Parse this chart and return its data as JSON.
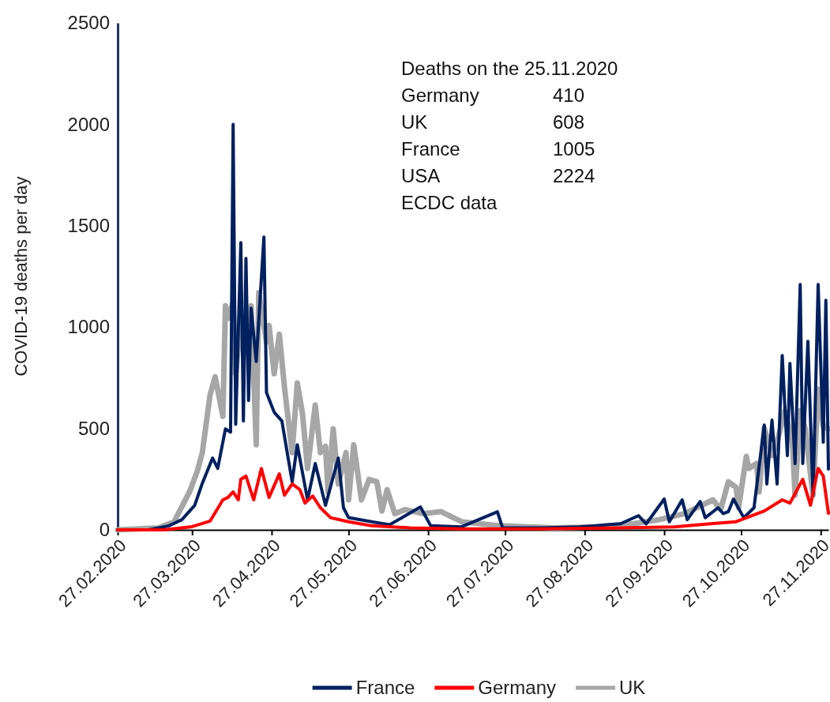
{
  "chart_data": {
    "type": "line",
    "ylabel": "COVID-19 deaths per day",
    "annotations": [
      "Deaths on the 25.11.2020",
      "Germany 410",
      "UK 608",
      "France 1005",
      "USA 2224",
      "ECDC data"
    ],
    "xlim": [
      "2020-02-27",
      "2020-11-30"
    ],
    "xticks": [
      {
        "value": "2020-02-27",
        "label": "27.02.2020"
      },
      {
        "value": "2020-03-27",
        "label": "27.03.2020"
      },
      {
        "value": "2020-04-27",
        "label": "27.04.2020"
      },
      {
        "value": "2020-05-27",
        "label": "27.05.2020"
      },
      {
        "value": "2020-06-27",
        "label": "27.06.2020"
      },
      {
        "value": "2020-07-27",
        "label": "27.07.2020"
      },
      {
        "value": "2020-08-27",
        "label": "27.08.2020"
      },
      {
        "value": "2020-09-27",
        "label": "27.09.2020"
      },
      {
        "value": "2020-10-27",
        "label": "27.10.2020"
      },
      {
        "value": "2020-11-27",
        "label": "27.11.2020"
      }
    ],
    "ylim": [
      0,
      2500
    ],
    "yticks": [
      0,
      500,
      1000,
      1500,
      2000,
      2500
    ],
    "grid": false,
    "legend": "bottom",
    "marker": "none",
    "line_style": "solid",
    "series": [
      {
        "name": "France",
        "color": "#002060",
        "x": [
          "2020-02-27",
          "2020-03-10",
          "2020-03-18",
          "2020-03-23",
          "2020-03-28",
          "2020-03-31",
          "2020-04-04",
          "2020-04-06",
          "2020-04-09",
          "2020-04-11",
          "2020-04-12",
          "2020-04-13",
          "2020-04-15",
          "2020-04-16",
          "2020-04-17",
          "2020-04-18",
          "2020-04-19",
          "2020-04-21",
          "2020-04-24",
          "2020-04-25",
          "2020-04-28",
          "2020-05-01",
          "2020-05-05",
          "2020-05-07",
          "2020-05-11",
          "2020-05-14",
          "2020-05-18",
          "2020-05-23",
          "2020-05-25",
          "2020-05-27",
          "2020-06-05",
          "2020-06-12",
          "2020-06-24",
          "2020-06-28",
          "2020-07-10",
          "2020-07-24",
          "2020-07-26",
          "2020-08-10",
          "2020-08-25",
          "2020-09-10",
          "2020-09-17",
          "2020-09-20",
          "2020-09-27",
          "2020-09-29",
          "2020-10-04",
          "2020-10-06",
          "2020-10-11",
          "2020-10-13",
          "2020-10-18",
          "2020-10-20",
          "2020-10-22",
          "2020-10-24",
          "2020-10-28",
          "2020-11-01",
          "2020-11-05",
          "2020-11-06",
          "2020-11-08",
          "2020-11-10",
          "2020-11-12",
          "2020-11-14",
          "2020-11-15",
          "2020-11-17",
          "2020-11-19",
          "2020-11-20",
          "2020-11-22",
          "2020-11-24",
          "2020-11-26",
          "2020-11-28",
          "2020-11-29",
          "2020-11-30"
        ],
        "values": [
          0,
          0,
          20,
          50,
          120,
          230,
          354,
          303,
          498,
          482,
          2000,
          521,
          1416,
          537,
          1339,
          638,
          1093,
          830,
          1444,
          677,
          580,
          537,
          237,
          420,
          148,
          327,
          121,
          354,
          109,
          60,
          40,
          25,
          113,
          20,
          15,
          89,
          10,
          10,
          15,
          30,
          70,
          30,
          152,
          40,
          148,
          50,
          140,
          60,
          109,
          80,
          90,
          152,
          60,
          109,
          517,
          226,
          541,
          226,
          860,
          366,
          821,
          327,
          1210,
          327,
          930,
          171,
          1210,
          432,
          1132,
          300
        ]
      },
      {
        "name": "Germany",
        "color": "#ff0000",
        "x": [
          "2020-02-27",
          "2020-03-16",
          "2020-03-27",
          "2020-04-03",
          "2020-04-08",
          "2020-04-10",
          "2020-04-12",
          "2020-04-14",
          "2020-04-15",
          "2020-04-17",
          "2020-04-20",
          "2020-04-23",
          "2020-04-26",
          "2020-04-30",
          "2020-05-02",
          "2020-05-05",
          "2020-05-08",
          "2020-05-10",
          "2020-05-13",
          "2020-05-16",
          "2020-05-20",
          "2020-05-27",
          "2020-06-05",
          "2020-06-20",
          "2020-07-10",
          "2020-08-10",
          "2020-09-10",
          "2020-10-01",
          "2020-10-15",
          "2020-10-25",
          "2020-11-05",
          "2020-11-12",
          "2020-11-15",
          "2020-11-20",
          "2020-11-23",
          "2020-11-26",
          "2020-11-28",
          "2020-11-30"
        ],
        "values": [
          0,
          0,
          16,
          43,
          148,
          160,
          187,
          148,
          249,
          265,
          148,
          303,
          160,
          276,
          171,
          226,
          198,
          132,
          167,
          109,
          60,
          40,
          20,
          10,
          5,
          5,
          10,
          15,
          30,
          40,
          93,
          148,
          132,
          249,
          121,
          303,
          265,
          82
        ]
      },
      {
        "name": "UK",
        "color": "#a6a6a6",
        "x": [
          "2020-02-27",
          "2020-03-14",
          "2020-03-20",
          "2020-03-26",
          "2020-03-29",
          "2020-03-31",
          "2020-04-03",
          "2020-04-05",
          "2020-04-08",
          "2020-04-09",
          "2020-04-10",
          "2020-04-12",
          "2020-04-13",
          "2020-04-15",
          "2020-04-16",
          "2020-04-18",
          "2020-04-19",
          "2020-04-21",
          "2020-04-22",
          "2020-04-25",
          "2020-04-26",
          "2020-04-28",
          "2020-04-30",
          "2020-05-02",
          "2020-05-05",
          "2020-05-07",
          "2020-05-09",
          "2020-05-11",
          "2020-05-14",
          "2020-05-16",
          "2020-05-18",
          "2020-05-19",
          "2020-05-21",
          "2020-05-23",
          "2020-05-26",
          "2020-05-27",
          "2020-05-29",
          "2020-06-01",
          "2020-06-04",
          "2020-06-07",
          "2020-06-09",
          "2020-06-11",
          "2020-06-14",
          "2020-06-18",
          "2020-06-25",
          "2020-07-02",
          "2020-07-10",
          "2020-07-25",
          "2020-08-15",
          "2020-09-01",
          "2020-09-15",
          "2020-09-25",
          "2020-10-05",
          "2020-10-16",
          "2020-10-19",
          "2020-10-22",
          "2020-10-25",
          "2020-10-26",
          "2020-10-29",
          "2020-10-30",
          "2020-11-02",
          "2020-11-03",
          "2020-11-05",
          "2020-11-08",
          "2020-11-10",
          "2020-11-13",
          "2020-11-16",
          "2020-11-17",
          "2020-11-19",
          "2020-11-21",
          "2020-11-23",
          "2020-11-24",
          "2020-11-26",
          "2020-11-28",
          "2020-11-30"
        ],
        "values": [
          0,
          10,
          40,
          187,
          288,
          381,
          665,
          755,
          560,
          1105,
          1043,
          1120,
          770,
          1027,
          899,
          1043,
          1105,
          420,
          1170,
          926,
          1008,
          770,
          965,
          704,
          381,
          724,
          576,
          303,
          615,
          381,
          412,
          187,
          498,
          226,
          381,
          148,
          420,
          148,
          249,
          237,
          93,
          198,
          80,
          100,
          80,
          90,
          40,
          20,
          10,
          15,
          30,
          50,
          80,
          148,
          100,
          237,
          210,
          109,
          362,
          303,
          327,
          187,
          502,
          366,
          432,
          588,
          432,
          171,
          588,
          498,
          276,
          171,
          693,
          510,
          498
        ]
      }
    ]
  }
}
